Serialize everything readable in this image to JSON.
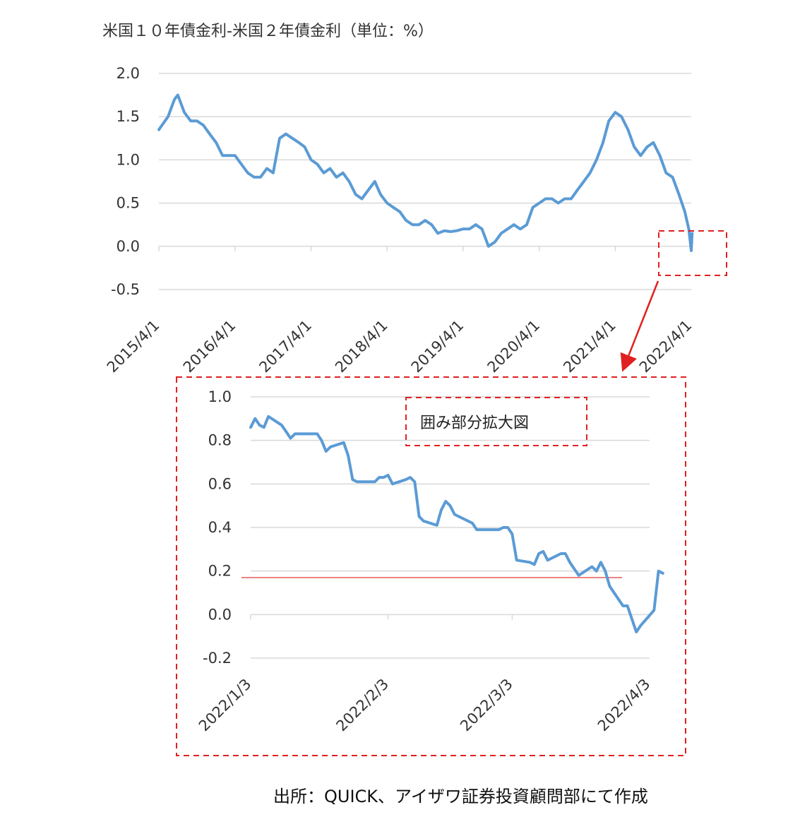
{
  "title": "米国１０年債金利-米国２年債金利（単位：%）",
  "source": "出所：QUICK、アイザワ証券投資顧問部にて作成",
  "zoom_label": "囲み部分拡大図",
  "colors": {
    "series": "#5b9bd5",
    "highlight": "#e02020",
    "grid": "#d9d9d9",
    "axis_text": "#333333"
  },
  "chart_data": [
    {
      "type": "line",
      "title": "米国１０年債金利-米国２年債金利（単位：%）",
      "ylim": [
        -0.5,
        2.0
      ],
      "yticks": [
        "2.0",
        "1.5",
        "1.0",
        "0.5",
        "0.0",
        "-0.5"
      ],
      "ytick_values": [
        2.0,
        1.5,
        1.0,
        0.5,
        0.0,
        -0.5
      ],
      "xticks": [
        "2015/4/1",
        "2016/4/1",
        "2017/4/1",
        "2018/4/1",
        "2019/4/1",
        "2020/4/1",
        "2021/4/1",
        "2022/4/1"
      ],
      "grid": true,
      "series": [
        {
          "x": [
            "2015/4/1",
            "2015/5/15",
            "2015/6/15",
            "2015/7/1",
            "2015/8/1",
            "2015/9/1",
            "2015/10/1",
            "2015/11/1",
            "2015/12/1",
            "2016/1/1",
            "2016/2/1",
            "2016/3/1",
            "2016/4/1",
            "2016/5/1",
            "2016/6/1",
            "2016/7/1",
            "2016/8/1",
            "2016/9/1",
            "2016/10/1",
            "2016/11/1",
            "2016/12/1",
            "2017/1/1",
            "2017/2/1",
            "2017/3/1",
            "2017/4/1",
            "2017/5/1",
            "2017/6/1",
            "2017/7/1",
            "2017/8/1",
            "2017/9/1",
            "2017/10/1",
            "2017/11/1",
            "2017/12/1",
            "2018/1/1",
            "2018/2/1",
            "2018/3/1",
            "2018/4/1",
            "2018/5/1",
            "2018/6/1",
            "2018/7/1",
            "2018/8/1",
            "2018/9/1",
            "2018/10/1",
            "2018/11/1",
            "2018/12/1",
            "2019/1/1",
            "2019/2/1",
            "2019/3/1",
            "2019/4/1",
            "2019/5/1",
            "2019/6/1",
            "2019/7/1",
            "2019/8/1",
            "2019/9/1",
            "2019/10/1",
            "2019/11/1",
            "2019/12/1",
            "2020/1/1",
            "2020/2/1",
            "2020/3/1",
            "2020/4/1",
            "2020/5/1",
            "2020/6/1",
            "2020/7/1",
            "2020/8/1",
            "2020/9/1",
            "2020/10/1",
            "2020/11/1",
            "2020/12/1",
            "2021/1/1",
            "2021/2/1",
            "2021/3/1",
            "2021/4/1",
            "2021/5/1",
            "2021/6/1",
            "2021/7/1",
            "2021/8/1",
            "2021/9/1",
            "2021/10/1",
            "2021/11/1",
            "2021/12/1",
            "2022/1/1",
            "2022/2/1",
            "2022/3/1",
            "2022/3/20",
            "2022/4/1",
            "2022/4/5"
          ],
          "values": [
            1.35,
            1.5,
            1.7,
            1.75,
            1.55,
            1.45,
            1.45,
            1.4,
            1.3,
            1.2,
            1.05,
            1.05,
            1.05,
            0.95,
            0.85,
            0.8,
            0.8,
            0.9,
            0.85,
            1.25,
            1.3,
            1.25,
            1.2,
            1.15,
            1.0,
            0.95,
            0.85,
            0.9,
            0.8,
            0.85,
            0.75,
            0.6,
            0.55,
            0.65,
            0.75,
            0.6,
            0.5,
            0.45,
            0.4,
            0.3,
            0.25,
            0.25,
            0.3,
            0.25,
            0.15,
            0.18,
            0.17,
            0.18,
            0.2,
            0.2,
            0.25,
            0.2,
            0.0,
            0.05,
            0.15,
            0.2,
            0.25,
            0.2,
            0.25,
            0.45,
            0.5,
            0.55,
            0.55,
            0.5,
            0.55,
            0.55,
            0.65,
            0.75,
            0.85,
            1.0,
            1.2,
            1.45,
            1.55,
            1.5,
            1.35,
            1.15,
            1.05,
            1.15,
            1.2,
            1.05,
            0.85,
            0.8,
            0.6,
            0.4,
            0.2,
            -0.05,
            0.15
          ]
        }
      ]
    },
    {
      "type": "line",
      "title": "囲み部分拡大図",
      "ylim": [
        -0.2,
        1.0
      ],
      "yticks": [
        "1.0",
        "0.8",
        "0.6",
        "0.4",
        "0.2",
        "0.0",
        "-0.2"
      ],
      "ytick_values": [
        1.0,
        0.8,
        0.6,
        0.4,
        0.2,
        0.0,
        -0.2
      ],
      "xticks": [
        "2022/1/3",
        "2022/2/3",
        "2022/3/3",
        "2022/4/3"
      ],
      "grid": true,
      "reference_line": 0.17,
      "series": [
        {
          "x": [
            "2022/1/3",
            "2022/1/4",
            "2022/1/5",
            "2022/1/6",
            "2022/1/7",
            "2022/1/10",
            "2022/1/11",
            "2022/1/12",
            "2022/1/13",
            "2022/1/14",
            "2022/1/18",
            "2022/1/19",
            "2022/1/20",
            "2022/1/21",
            "2022/1/24",
            "2022/1/25",
            "2022/1/26",
            "2022/1/27",
            "2022/1/28",
            "2022/1/31",
            "2022/2/1",
            "2022/2/2",
            "2022/2/3",
            "2022/2/4",
            "2022/2/7",
            "2022/2/8",
            "2022/2/9",
            "2022/2/10",
            "2022/2/11",
            "2022/2/14",
            "2022/2/15",
            "2022/2/16",
            "2022/2/17",
            "2022/2/18",
            "2022/2/22",
            "2022/2/23",
            "2022/2/24",
            "2022/2/25",
            "2022/2/28",
            "2022/3/1",
            "2022/3/2",
            "2022/3/3",
            "2022/3/4",
            "2022/3/7",
            "2022/3/8",
            "2022/3/9",
            "2022/3/10",
            "2022/3/11",
            "2022/3/14",
            "2022/3/15",
            "2022/3/16",
            "2022/3/17",
            "2022/3/18",
            "2022/3/21",
            "2022/3/22",
            "2022/3/23",
            "2022/3/24",
            "2022/3/25",
            "2022/3/28",
            "2022/3/29",
            "2022/3/30",
            "2022/3/31",
            "2022/4/1",
            "2022/4/4",
            "2022/4/5",
            "2022/4/6"
          ],
          "values": [
            0.86,
            0.9,
            0.87,
            0.86,
            0.91,
            0.87,
            0.84,
            0.81,
            0.83,
            0.83,
            0.83,
            0.8,
            0.75,
            0.77,
            0.79,
            0.73,
            0.62,
            0.61,
            0.61,
            0.61,
            0.63,
            0.63,
            0.64,
            0.6,
            0.62,
            0.63,
            0.61,
            0.45,
            0.43,
            0.41,
            0.48,
            0.52,
            0.5,
            0.46,
            0.42,
            0.39,
            0.39,
            0.39,
            0.39,
            0.4,
            0.4,
            0.37,
            0.25,
            0.24,
            0.23,
            0.28,
            0.29,
            0.25,
            0.28,
            0.28,
            0.24,
            0.21,
            0.18,
            0.22,
            0.2,
            0.24,
            0.2,
            0.13,
            0.04,
            0.04,
            -0.02,
            -0.08,
            -0.05,
            0.02,
            0.2,
            0.19
          ]
        }
      ]
    }
  ]
}
